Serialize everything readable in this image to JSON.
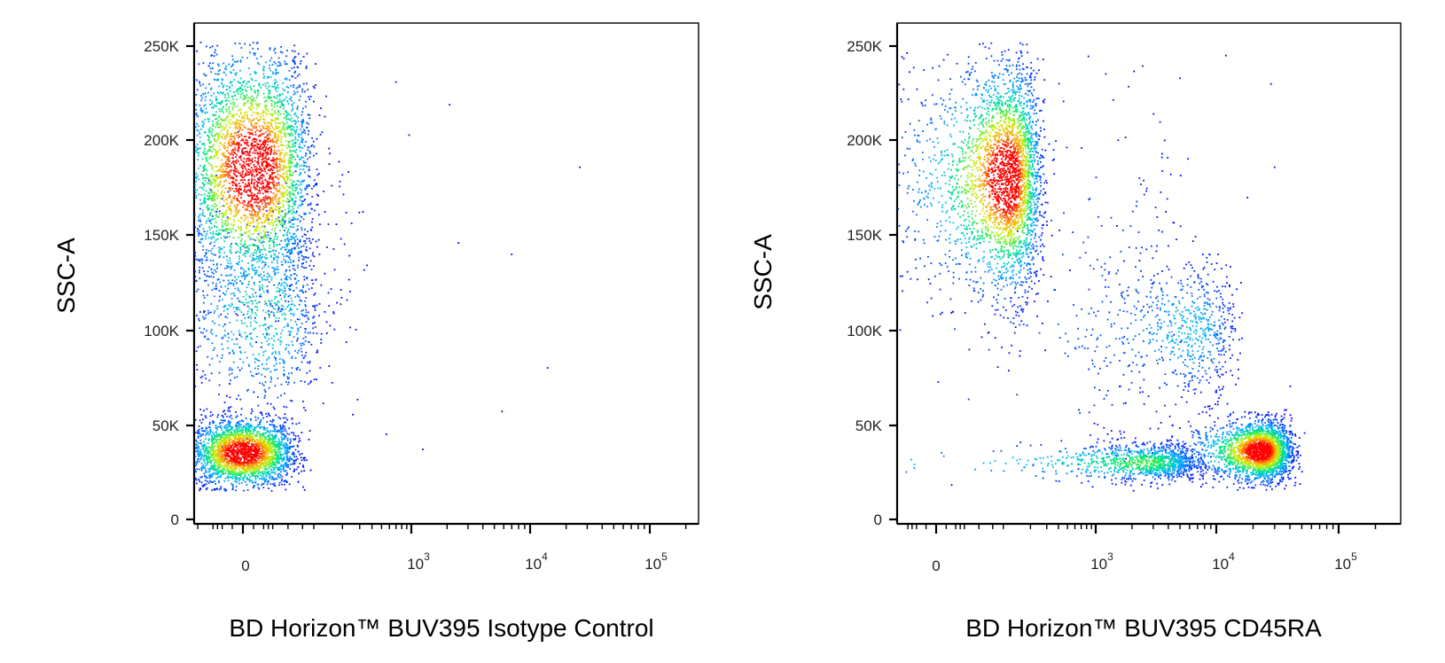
{
  "chart_data": [
    {
      "type": "scatter",
      "subtype": "flow-cytometry-density-dot-plot",
      "xlabel": "BD Horizon™ BUV395 Isotype Control",
      "ylabel": "SSC-A",
      "x_scale": "biexponential",
      "y_scale": "linear",
      "xlim": [
        -150,
        200000
      ],
      "ylim": [
        0,
        262144
      ],
      "x_ticks": [
        {
          "value": 0,
          "base": "0",
          "exp": ""
        },
        {
          "value": 1000,
          "base": "10",
          "exp": "3"
        },
        {
          "value": 10000,
          "base": "10",
          "exp": "4"
        },
        {
          "value": 100000,
          "base": "10",
          "exp": "5"
        }
      ],
      "y_ticks": [
        {
          "value": 0,
          "label": "0"
        },
        {
          "value": 50000,
          "label": "50K"
        },
        {
          "value": 100000,
          "label": "100K"
        },
        {
          "value": 150000,
          "label": "150K"
        },
        {
          "value": 200000,
          "label": "200K"
        },
        {
          "value": 250000,
          "label": "250K"
        }
      ],
      "populations": [
        {
          "x_center": 0,
          "x_spread": 28,
          "y_center": 35000,
          "y_spread": 9000,
          "count": 2600
        },
        {
          "x_center": 10,
          "x_spread": 38,
          "y_center": 185000,
          "y_spread": 32000,
          "count": 3400
        },
        {
          "x_center": 20,
          "x_spread": 45,
          "y_center": 110000,
          "y_spread": 28000,
          "count": 900
        },
        {
          "x_center": 120,
          "x_spread": 120,
          "y_center": 150000,
          "y_spread": 50000,
          "count": 80
        }
      ],
      "outliers": [
        [
          1250,
          37000
        ],
        [
          2500,
          146000
        ],
        [
          7000,
          140000
        ],
        [
          14000,
          80000
        ],
        [
          26000,
          186000
        ],
        [
          5800,
          57000
        ],
        [
          2100,
          219000
        ],
        [
          950,
          203000
        ],
        [
          700,
          231000
        ],
        [
          560,
          45000
        ]
      ],
      "legend": "none",
      "grid": false
    },
    {
      "type": "scatter",
      "subtype": "flow-cytometry-density-dot-plot",
      "xlabel": "BD Horizon™ BUV395  CD45RA",
      "ylabel": "SSC-A",
      "x_scale": "biexponential",
      "y_scale": "linear",
      "xlim": [
        -150,
        200000
      ],
      "ylim": [
        0,
        262144
      ],
      "x_ticks": [
        {
          "value": 0,
          "base": "0",
          "exp": ""
        },
        {
          "value": 1000,
          "base": "10",
          "exp": "3"
        },
        {
          "value": 10000,
          "base": "10",
          "exp": "4"
        },
        {
          "value": 100000,
          "base": "10",
          "exp": "5"
        }
      ],
      "y_ticks": [
        {
          "value": 0,
          "label": "0"
        },
        {
          "value": 50000,
          "label": "50K"
        },
        {
          "value": 100000,
          "label": "100K"
        },
        {
          "value": 150000,
          "label": "150K"
        },
        {
          "value": 200000,
          "label": "200K"
        },
        {
          "value": 250000,
          "label": "250K"
        }
      ],
      "populations": [
        {
          "x_center": 110,
          "x_spread": 70,
          "y_center": 180000,
          "y_spread": 30000,
          "count": 3200
        },
        {
          "x_center": 23000,
          "x_spread": 9000,
          "y_center": 36000,
          "y_spread": 8000,
          "count": 2400
        },
        {
          "x_center": 2500,
          "x_spread": 2200,
          "y_center": 30000,
          "y_spread": 5000,
          "count": 1200
        },
        {
          "x_center": 6000,
          "x_spread": 4000,
          "y_center": 100000,
          "y_spread": 18000,
          "count": 700
        },
        {
          "x_center": 1000,
          "x_spread": 2000,
          "y_center": 110000,
          "y_spread": 60000,
          "count": 250
        }
      ],
      "outliers": [
        [
          5000,
          233000
        ],
        [
          28000,
          230000
        ],
        [
          12000,
          245000
        ],
        [
          30000,
          186000
        ],
        [
          18000,
          170000
        ],
        [
          -40,
          100000
        ],
        [
          -90,
          40000
        ],
        [
          1500,
          155000
        ]
      ],
      "legend": "none",
      "grid": false
    }
  ]
}
